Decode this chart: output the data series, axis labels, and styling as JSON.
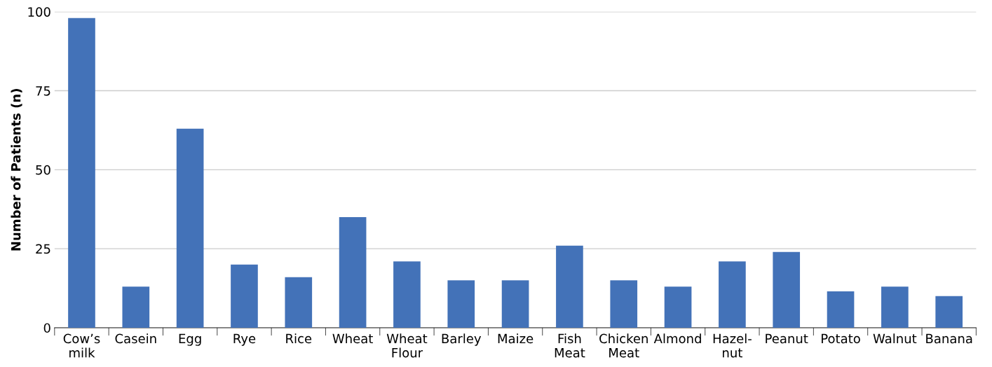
{
  "chart_data": {
    "type": "bar",
    "ylabel": "Number of Patients (n)",
    "categories": [
      "Cow’s\nmilk",
      "Casein",
      "Egg",
      "Rye",
      "Rice",
      "Wheat",
      "Wheat\nFlour",
      "Barley",
      "Maize",
      "Fish\nMeat",
      "Chicken\nMeat",
      "Almond",
      "Hazel-\nnut",
      "Peanut",
      "Potato",
      "Walnut",
      "Banana"
    ],
    "values": [
      98,
      13,
      63,
      20,
      16,
      35,
      21,
      15,
      15,
      26,
      15,
      13,
      21,
      24,
      11.5,
      13,
      10
    ],
    "color": "#4372b8",
    "ylim": [
      0,
      100
    ],
    "yticks": [
      0,
      25,
      50,
      75,
      100
    ],
    "grid": "y",
    "legend": false
  }
}
